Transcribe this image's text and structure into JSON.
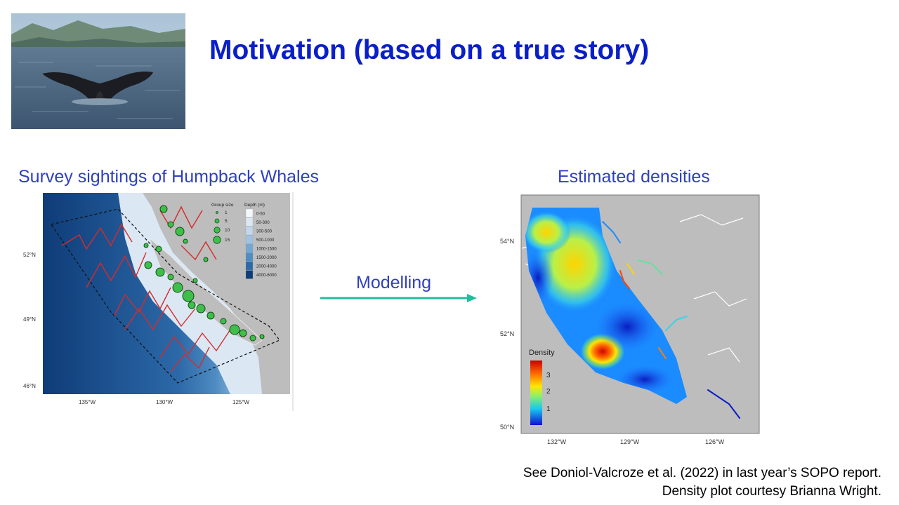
{
  "slide": {
    "title": "Motivation (based on a true story)",
    "left_caption": "Survey sightings of Humpback Whales",
    "right_caption": "Estimated densities",
    "arrow_label": "Modelling",
    "footnote_line1": "See Doniol-Valcroze  et al. (2022) in last year’s SOPO report.",
    "footnote_line2": "Density plot courtesy Brianna Wright."
  },
  "survey_map": {
    "legend_group_title": "Group size",
    "group_sizes": [
      "1",
      "5",
      "10",
      "15"
    ],
    "legend_depth_title": "Depth (m)",
    "depth_bins": [
      "0-50",
      "50-300",
      "300-500",
      "500-1000",
      "1000-1500",
      "1500-2000",
      "2000-4000",
      "4000-6000"
    ],
    "depth_colors": [
      "#f4f8fc",
      "#dbe8f4",
      "#c0d7ec",
      "#9ec2e2",
      "#74a7d4",
      "#4f8cc2",
      "#2c69a8",
      "#0e3c78"
    ],
    "lat_labels": [
      "52°N",
      "49°N",
      "46°N"
    ],
    "lon_labels": [
      "135°W",
      "130°W",
      "125°W"
    ]
  },
  "density_map": {
    "legend_title": "Density",
    "legend_ticks": [
      "3",
      "2",
      "1"
    ],
    "lat_labels": [
      "54°N",
      "52°N",
      "50°N"
    ],
    "lon_labels": [
      "132°W",
      "129°W",
      "126°W"
    ]
  },
  "colors": {
    "title": "#0a1fc8",
    "caption": "#2f3fc0",
    "arrow": "#1fbf9a"
  }
}
